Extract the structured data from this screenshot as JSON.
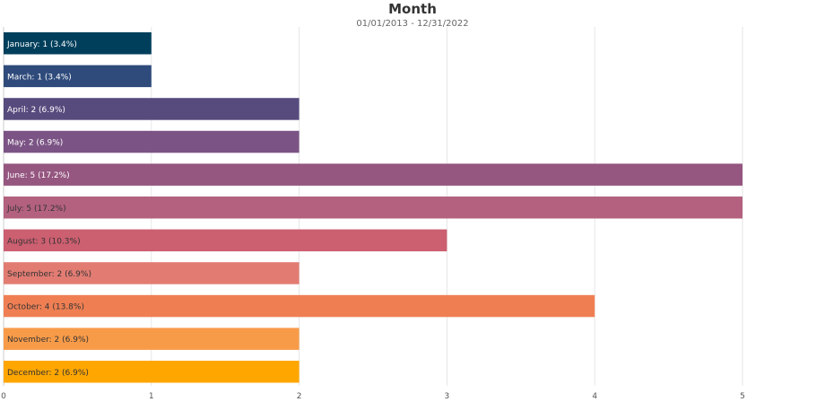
{
  "chart_data": {
    "type": "bar",
    "orientation": "horizontal",
    "title": "Month",
    "subtitle": "01/01/2013 - 12/31/2022",
    "categories": [
      "January",
      "March",
      "April",
      "May",
      "June",
      "July",
      "August",
      "September",
      "October",
      "November",
      "December"
    ],
    "values": [
      1,
      1,
      2,
      2,
      5,
      5,
      3,
      2,
      4,
      2,
      2
    ],
    "labels": [
      "January: 1 (3.4%)",
      "March: 1 (3.4%)",
      "April: 2 (6.9%)",
      "May: 2 (6.9%)",
      "June: 5 (17.2%)",
      "July: 5 (17.2%)",
      "August: 3 (10.3%)",
      "September: 2 (6.9%)",
      "October: 4 (13.8%)",
      "November: 2 (6.9%)",
      "December: 2 (6.9%)"
    ],
    "colors": [
      "#003f5c",
      "#2f4b7c",
      "#574b7e",
      "#7b5485",
      "#955680",
      "#b3617e",
      "#cc5f70",
      "#e27c73",
      "#ef7f53",
      "#f89b49",
      "#ffa600"
    ],
    "label_colors": [
      "#ffffff",
      "#ffffff",
      "#ffffff",
      "#ffffff",
      "#ffffff",
      "#333333",
      "#333333",
      "#333333",
      "#333333",
      "#333333",
      "#333333"
    ],
    "xlim": [
      0,
      5
    ],
    "xticks": [
      "0",
      "1",
      "2",
      "3",
      "4",
      "5"
    ],
    "grid": true,
    "legend": "none"
  }
}
